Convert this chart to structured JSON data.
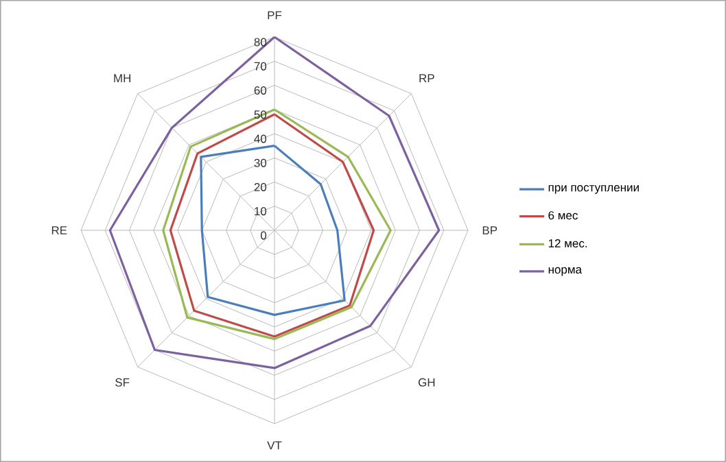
{
  "chart_data": {
    "type": "radar",
    "categories": [
      "PF",
      "RP",
      "BP",
      "GH",
      "VT",
      "SF",
      "RE",
      "MH"
    ],
    "ylim": [
      0,
      80
    ],
    "yticks": [
      0,
      10,
      20,
      30,
      40,
      50,
      60,
      70,
      80
    ],
    "grid": true,
    "legend": "right",
    "line_style": "solid",
    "marker": "none",
    "series": [
      {
        "name": "при поступлении",
        "color": "#4a7ebb",
        "values": [
          35,
          27,
          26,
          41,
          35,
          39,
          30,
          43
        ]
      },
      {
        "name": "6 мес",
        "color": "#be4b48",
        "values": [
          48,
          40,
          41,
          44,
          44,
          47,
          43,
          45
        ]
      },
      {
        "name": "12 мес.",
        "color": "#98b954",
        "values": [
          50,
          43,
          48,
          45,
          45,
          51,
          46,
          49
        ]
      },
      {
        "name": "норма",
        "color": "#7d60a0",
        "values": [
          80,
          67,
          68,
          56,
          57,
          70,
          68,
          60
        ]
      }
    ]
  }
}
